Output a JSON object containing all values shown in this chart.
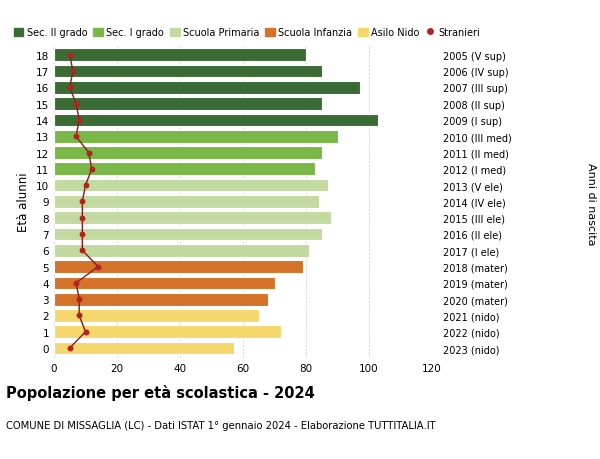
{
  "ages": [
    18,
    17,
    16,
    15,
    14,
    13,
    12,
    11,
    10,
    9,
    8,
    7,
    6,
    5,
    4,
    3,
    2,
    1,
    0
  ],
  "right_labels": [
    "2005 (V sup)",
    "2006 (IV sup)",
    "2007 (III sup)",
    "2008 (II sup)",
    "2009 (I sup)",
    "2010 (III med)",
    "2011 (II med)",
    "2012 (I med)",
    "2013 (V ele)",
    "2014 (IV ele)",
    "2015 (III ele)",
    "2016 (II ele)",
    "2017 (I ele)",
    "2018 (mater)",
    "2019 (mater)",
    "2020 (mater)",
    "2021 (nido)",
    "2022 (nido)",
    "2023 (nido)"
  ],
  "bar_values": [
    80,
    85,
    97,
    85,
    103,
    90,
    85,
    83,
    87,
    84,
    88,
    85,
    81,
    79,
    70,
    68,
    65,
    72,
    57
  ],
  "stranieri_values": [
    5,
    6,
    5,
    7,
    8,
    7,
    11,
    12,
    10,
    9,
    9,
    9,
    9,
    14,
    7,
    8,
    8,
    10,
    5
  ],
  "bar_colors": [
    "#3a6b35",
    "#3a6b35",
    "#3a6b35",
    "#3a6b35",
    "#3a6b35",
    "#7ab648",
    "#7ab648",
    "#7ab648",
    "#c2d9a0",
    "#c2d9a0",
    "#c2d9a0",
    "#c2d9a0",
    "#c2d9a0",
    "#d4722a",
    "#d4722a",
    "#d4722a",
    "#f5d76e",
    "#f5d76e",
    "#f5d76e"
  ],
  "legend_colors": [
    "#3a6b35",
    "#7ab648",
    "#c2d9a0",
    "#d4722a",
    "#f5d76e",
    "#b22222"
  ],
  "legend_labels": [
    "Sec. II grado",
    "Sec. I grado",
    "Scuola Primaria",
    "Scuola Infanzia",
    "Asilo Nido",
    "Stranieri"
  ],
  "ylabel_left": "Età alunni",
  "ylabel_right": "Anni di nascita",
  "title": "Popolazione per età scolastica - 2024",
  "subtitle": "COMUNE DI MISSAGLIA (LC) - Dati ISTAT 1° gennaio 2024 - Elaborazione TUTTITALIA.IT",
  "xlim": [
    0,
    120
  ],
  "xticks": [
    0,
    20,
    40,
    60,
    80,
    100,
    120
  ],
  "bg_color": "#ffffff",
  "bar_height": 0.78,
  "grid_color": "#cccccc",
  "stranieri_color": "#b22222",
  "stranieri_line_color": "#8b1a1a"
}
